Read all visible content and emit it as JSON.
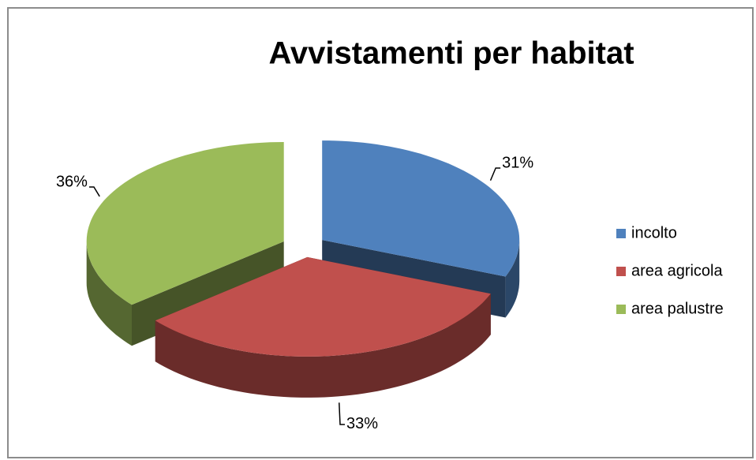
{
  "chart_data": {
    "type": "pie3d",
    "title": "Avvistamenti per habitat",
    "categories": [
      "incolto",
      "area agricola",
      "area palustre"
    ],
    "values": [
      31,
      33,
      36
    ],
    "value_labels": [
      "31%",
      "33%",
      "36%"
    ],
    "colors": [
      "#4f81bd",
      "#c0504d",
      "#9bbb59"
    ],
    "legend": "right"
  }
}
